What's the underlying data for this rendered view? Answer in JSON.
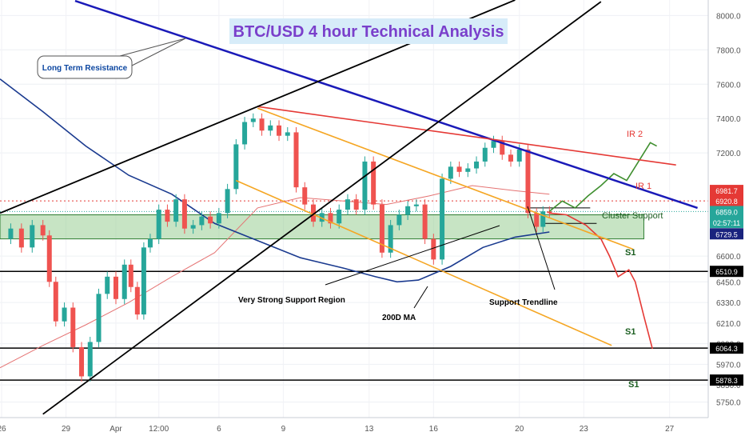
{
  "chart_data": {
    "type": "line",
    "title": "BTC/USD 4 hour Technical Analysis",
    "ylim": [
      5660,
      8090
    ],
    "y_ticks": [
      8000.0,
      7800.0,
      7600.0,
      7400.0,
      7200.0,
      6600.0,
      6450.0,
      6330.0,
      6210.0,
      6090.0,
      5970.0,
      5850.0,
      5750.0
    ],
    "x_ticks": [
      {
        "label": "26",
        "x": 0.075
      },
      {
        "label": "29",
        "x": 3.075
      },
      {
        "label": "Apr",
        "x": 5.4
      },
      {
        "label": "12:00",
        "x": 7.4
      },
      {
        "label": "6",
        "x": 10.2
      },
      {
        "label": "9",
        "x": 13.2
      },
      {
        "label": "13",
        "x": 17.2
      },
      {
        "label": "16",
        "x": 20.2
      },
      {
        "label": "20",
        "x": 24.2
      },
      {
        "label": "23",
        "x": 27.2
      },
      {
        "label": "27",
        "x": 31.2
      }
    ],
    "price_tags": [
      {
        "value": "6981.7",
        "y": 6981.7,
        "color": "#e53935"
      },
      {
        "value": "6920.8",
        "y": 6920.8,
        "color": "#e53935"
      },
      {
        "value": "6859.0",
        "y": 6859.0,
        "color": "#26a69a"
      },
      {
        "value": "02:57:11",
        "y": 6796.0,
        "color": "#26a69a"
      },
      {
        "value": "6729.5",
        "y": 6729.5,
        "color": "#1a237e"
      },
      {
        "value": "6510.9",
        "y": 6510.9,
        "color": "#000000"
      },
      {
        "value": "6064.3",
        "y": 6064.3,
        "color": "#000000"
      },
      {
        "value": "5878.3",
        "y": 5878.3,
        "color": "#000000"
      }
    ],
    "horizontal_levels": [
      6510.9,
      6064.3,
      5878.3
    ],
    "cluster_zone": [
      6700,
      6840
    ],
    "close_series": {
      "name": "BTC/USD",
      "points": [
        [
          0.0,
          6700
        ],
        [
          0.5,
          6760
        ],
        [
          1.0,
          6650
        ],
        [
          1.5,
          6780
        ],
        [
          2.0,
          6720
        ],
        [
          2.3,
          6450
        ],
        [
          2.6,
          6220
        ],
        [
          3.0,
          6300
        ],
        [
          3.4,
          6070
        ],
        [
          3.8,
          5900
        ],
        [
          4.2,
          6100
        ],
        [
          4.6,
          6380
        ],
        [
          5.0,
          6480
        ],
        [
          5.4,
          6350
        ],
        [
          5.8,
          6550
        ],
        [
          6.1,
          6420
        ],
        [
          6.4,
          6260
        ],
        [
          6.7,
          6650
        ],
        [
          7.0,
          6700
        ],
        [
          7.4,
          6870
        ],
        [
          7.8,
          6800
        ],
        [
          8.2,
          6930
        ],
        [
          8.6,
          6760
        ],
        [
          9.0,
          6780
        ],
        [
          9.4,
          6830
        ],
        [
          9.8,
          6790
        ],
        [
          10.2,
          6850
        ],
        [
          10.6,
          6990
        ],
        [
          11.0,
          7250
        ],
        [
          11.4,
          7380
        ],
        [
          11.8,
          7400
        ],
        [
          12.2,
          7330
        ],
        [
          12.6,
          7360
        ],
        [
          13.0,
          7300
        ],
        [
          13.4,
          7320
        ],
        [
          13.8,
          7000
        ],
        [
          14.2,
          6900
        ],
        [
          14.6,
          6800
        ],
        [
          15.0,
          6850
        ],
        [
          15.4,
          6790
        ],
        [
          15.8,
          6870
        ],
        [
          16.2,
          6930
        ],
        [
          16.6,
          6870
        ],
        [
          17.0,
          7150
        ],
        [
          17.4,
          6900
        ],
        [
          17.8,
          6620
        ],
        [
          18.2,
          6780
        ],
        [
          18.6,
          6840
        ],
        [
          19.0,
          6890
        ],
        [
          19.4,
          6900
        ],
        [
          19.8,
          6700
        ],
        [
          20.2,
          6580
        ],
        [
          20.6,
          7050
        ],
        [
          21.0,
          7120
        ],
        [
          21.4,
          7090
        ],
        [
          21.8,
          7110
        ],
        [
          22.2,
          7150
        ],
        [
          22.6,
          7230
        ],
        [
          23.0,
          7270
        ],
        [
          23.4,
          7190
        ],
        [
          23.8,
          7150
        ],
        [
          24.2,
          7220
        ],
        [
          24.6,
          6850
        ],
        [
          25.0,
          6770
        ],
        [
          25.3,
          6860
        ],
        [
          25.6,
          6850
        ]
      ]
    },
    "ma_200": {
      "name": "200D MA",
      "points": [
        [
          0.0,
          7630
        ],
        [
          2.0,
          7440
        ],
        [
          4.0,
          7240
        ],
        [
          6.0,
          7070
        ],
        [
          8.0,
          6960
        ],
        [
          10.0,
          6790
        ],
        [
          12.0,
          6690
        ],
        [
          14.0,
          6590
        ],
        [
          16.0,
          6530
        ],
        [
          17.5,
          6480
        ],
        [
          18.5,
          6450
        ],
        [
          19.5,
          6460
        ],
        [
          21.0,
          6540
        ],
        [
          22.5,
          6650
        ],
        [
          24.0,
          6710
        ],
        [
          25.6,
          6740
        ]
      ]
    },
    "ma_short": {
      "points": [
        [
          0.0,
          5950
        ],
        [
          2.0,
          6080
        ],
        [
          4.0,
          6200
        ],
        [
          6.0,
          6330
        ],
        [
          8.0,
          6480
        ],
        [
          10.0,
          6620
        ],
        [
          12.0,
          6880
        ],
        [
          14.0,
          6940
        ],
        [
          16.0,
          6920
        ],
        [
          18.0,
          6900
        ],
        [
          20.0,
          6950
        ],
        [
          22.0,
          7010
        ],
        [
          24.0,
          6980
        ],
        [
          25.6,
          6960
        ]
      ]
    },
    "projection_up": {
      "points": [
        [
          25.6,
          6860
        ],
        [
          26.2,
          6920
        ],
        [
          26.8,
          6880
        ],
        [
          27.4,
          6950
        ],
        [
          28.0,
          7010
        ],
        [
          28.6,
          7080
        ],
        [
          29.2,
          7040
        ],
        [
          29.8,
          7160
        ],
        [
          30.3,
          7260
        ],
        [
          30.6,
          7240
        ]
      ]
    },
    "projection_down": {
      "points": [
        [
          25.6,
          6850
        ],
        [
          26.4,
          6840
        ],
        [
          27.3,
          6780
        ],
        [
          28.0,
          6700
        ],
        [
          28.4,
          6600
        ],
        [
          28.8,
          6480
        ],
        [
          29.3,
          6520
        ],
        [
          29.6,
          6450
        ],
        [
          30.0,
          6250
        ],
        [
          30.4,
          6060
        ]
      ]
    },
    "trendlines": [
      {
        "name": "long-term-resistance-line",
        "color": "#1a1ab8",
        "points": [
          [
            3.5,
            8085
          ],
          [
            32.5,
            6880
          ]
        ]
      },
      {
        "name": "ir2-trendline",
        "color": "#e53935",
        "points": [
          [
            12.0,
            7470
          ],
          [
            31.5,
            7130
          ]
        ]
      },
      {
        "name": "channel-upper",
        "color": "#f5a623",
        "points": [
          [
            12.0,
            7460
          ],
          [
            29.5,
            6640
          ]
        ]
      },
      {
        "name": "channel-lower",
        "color": "#f5a623",
        "points": [
          [
            11.0,
            7040
          ],
          [
            28.5,
            6080
          ]
        ]
      },
      {
        "name": "long-term-support-black",
        "color": "#000000",
        "points": [
          [
            0.0,
            6850
          ],
          [
            24.0,
            8090
          ]
        ]
      },
      {
        "name": "steep-support-black",
        "color": "#000000",
        "points": [
          [
            2.0,
            5680
          ],
          [
            28.0,
            8080
          ]
        ]
      }
    ],
    "annotations": [
      {
        "text": "Long Term Resistance",
        "color": "#0d47a1"
      },
      {
        "text": "IR 2",
        "color": "#e53935"
      },
      {
        "text": "IR 1",
        "color": "#e53935"
      },
      {
        "text": "Cluster Support",
        "color": "#1b5e20"
      },
      {
        "text": "S1",
        "color": "#1b5e20"
      },
      {
        "text": "S1",
        "color": "#1b5e20"
      },
      {
        "text": "S1",
        "color": "#1b5e20"
      },
      {
        "text": "Very Strong Support Region",
        "color": "#000000"
      },
      {
        "text": "200D MA",
        "color": "#000000"
      },
      {
        "text": "Support Trendline",
        "color": "#000000"
      }
    ]
  }
}
